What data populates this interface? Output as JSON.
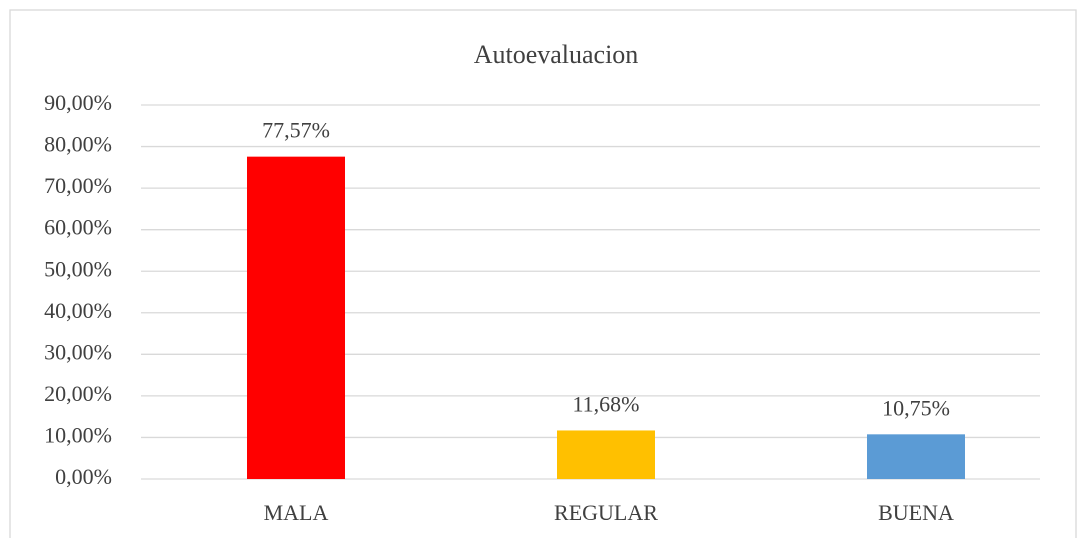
{
  "chart_data": {
    "type": "bar",
    "title": "Autoevaluacion",
    "categories": [
      "MALA",
      "REGULAR",
      "BUENA"
    ],
    "values": [
      77.57,
      11.68,
      10.75
    ],
    "value_labels": [
      "77,57%",
      "11,68%",
      "10,75%"
    ],
    "colors": [
      "#ff0000",
      "#ffc000",
      "#5b9bd5"
    ],
    "ylim": [
      0,
      90
    ],
    "yticks": [
      {
        "value": 0,
        "label": "0,00%"
      },
      {
        "value": 10,
        "label": "10,00%"
      },
      {
        "value": 20,
        "label": "20,00%"
      },
      {
        "value": 30,
        "label": "30,00%"
      },
      {
        "value": 40,
        "label": "40,00%"
      },
      {
        "value": 50,
        "label": "50,00%"
      },
      {
        "value": 60,
        "label": "60,00%"
      },
      {
        "value": 70,
        "label": "70,00%"
      },
      {
        "value": 80,
        "label": "80,00%"
      },
      {
        "value": 90,
        "label": "90,00%"
      }
    ],
    "grid": true
  }
}
